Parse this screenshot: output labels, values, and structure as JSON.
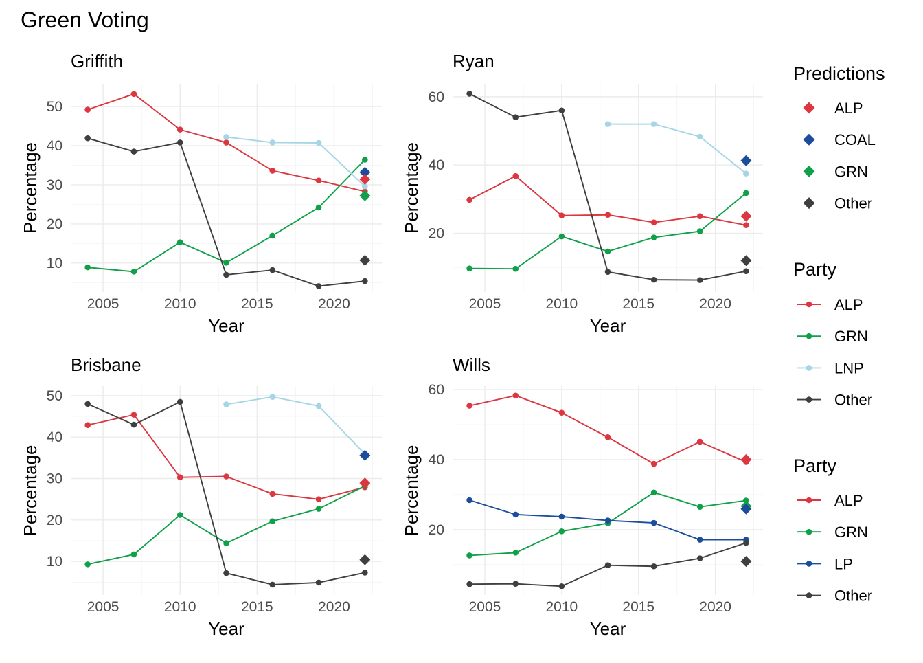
{
  "title": "Green Voting",
  "colors": {
    "ALP": "#dc3641",
    "GRN": "#10a049",
    "LNP": "#a6d5e6",
    "LP": "#1b4d9c",
    "COAL": "#1b4d9c",
    "Other": "#3f3f3f"
  },
  "legends": [
    {
      "title": "Predictions",
      "kind": "diamond",
      "items": [
        "ALP",
        "COAL",
        "GRN",
        "Other"
      ]
    },
    {
      "title": "Party",
      "kind": "line-point",
      "items": [
        "ALP",
        "GRN",
        "LNP",
        "Other"
      ]
    },
    {
      "title": "Party",
      "kind": "line-point",
      "items": [
        "ALP",
        "GRN",
        "LP",
        "Other"
      ]
    }
  ],
  "chart_data": [
    {
      "type": "line",
      "title": "Griffith",
      "xlabel": "Year",
      "ylabel": "Percentage",
      "xlim": [
        2002.9,
        2023.1
      ],
      "ylim": [
        2.6,
        55.8
      ],
      "xticks": [
        2005,
        2010,
        2015,
        2020
      ],
      "yticks": [
        10,
        20,
        30,
        40,
        50
      ],
      "series": [
        {
          "name": "ALP",
          "x": [
            2004,
            2007,
            2010,
            2013,
            2016,
            2019,
            2022
          ],
          "y": [
            49.2,
            53.2,
            44.1,
            40.8,
            33.6,
            31.1,
            28.3
          ]
        },
        {
          "name": "GRN",
          "x": [
            2004,
            2007,
            2010,
            2013,
            2016,
            2019,
            2022
          ],
          "y": [
            8.9,
            7.8,
            15.3,
            10.1,
            17.0,
            24.2,
            36.4
          ]
        },
        {
          "name": "LNP",
          "x": [
            2013,
            2016,
            2019,
            2022
          ],
          "y": [
            42.2,
            40.8,
            40.7,
            29.6
          ]
        },
        {
          "name": "Other",
          "x": [
            2004,
            2007,
            2010,
            2013,
            2016,
            2019,
            2022
          ],
          "y": [
            41.9,
            38.5,
            40.8,
            7.0,
            8.2,
            4.1,
            5.4
          ]
        }
      ],
      "predictions": [
        {
          "party": "COAL",
          "x": 2022,
          "y": 33.2
        },
        {
          "party": "ALP",
          "x": 2022,
          "y": 31.4
        },
        {
          "party": "GRN",
          "x": 2022,
          "y": 27.2
        },
        {
          "party": "Other",
          "x": 2022,
          "y": 10.7
        }
      ]
    },
    {
      "type": "line",
      "title": "Ryan",
      "xlabel": "Year",
      "ylabel": "Percentage",
      "xlim": [
        2002.9,
        2023.1
      ],
      "ylim": [
        2.8,
        63.8
      ],
      "xticks": [
        2005,
        2010,
        2015,
        2020
      ],
      "yticks": [
        20,
        40,
        60
      ],
      "series": [
        {
          "name": "ALP",
          "x": [
            2004,
            2007,
            2010,
            2013,
            2016,
            2019,
            2022
          ],
          "y": [
            29.8,
            36.8,
            25.2,
            25.4,
            23.2,
            25.0,
            22.4
          ]
        },
        {
          "name": "GRN",
          "x": [
            2004,
            2007,
            2010,
            2013,
            2016,
            2019,
            2022
          ],
          "y": [
            9.7,
            9.6,
            19.1,
            14.7,
            18.8,
            20.6,
            31.8
          ]
        },
        {
          "name": "LNP",
          "x": [
            2013,
            2016,
            2019,
            2022
          ],
          "y": [
            52.0,
            52.0,
            48.3,
            37.5
          ]
        },
        {
          "name": "Other",
          "x": [
            2004,
            2007,
            2010,
            2013,
            2016,
            2019,
            2022
          ],
          "y": [
            60.9,
            54.0,
            56.0,
            8.7,
            6.4,
            6.3,
            8.9
          ]
        }
      ],
      "predictions": [
        {
          "party": "COAL",
          "x": 2022,
          "y": 41.3
        },
        {
          "party": "ALP",
          "x": 2022,
          "y": 25.0
        },
        {
          "party": "Other",
          "x": 2022,
          "y": 12.0
        }
      ]
    },
    {
      "type": "line",
      "title": "Brisbane",
      "xlabel": "Year",
      "ylabel": "Percentage",
      "xlim": [
        2002.9,
        2023.1
      ],
      "ylim": [
        1.9,
        52.3
      ],
      "xticks": [
        2005,
        2010,
        2015,
        2020
      ],
      "yticks": [
        10,
        20,
        30,
        40,
        50
      ],
      "series": [
        {
          "name": "ALP",
          "x": [
            2004,
            2007,
            2010,
            2013,
            2016,
            2019,
            2022
          ],
          "y": [
            42.9,
            45.4,
            30.3,
            30.5,
            26.3,
            25.0,
            27.9
          ]
        },
        {
          "name": "GRN",
          "x": [
            2004,
            2007,
            2010,
            2013,
            2016,
            2019,
            2022
          ],
          "y": [
            9.3,
            11.7,
            21.2,
            14.4,
            19.7,
            22.7,
            28.2
          ]
        },
        {
          "name": "LNP",
          "x": [
            2013,
            2016,
            2019,
            2022
          ],
          "y": [
            47.9,
            49.7,
            47.5,
            35.9
          ]
        },
        {
          "name": "Other",
          "x": [
            2004,
            2007,
            2010,
            2013,
            2016,
            2019,
            2022
          ],
          "y": [
            48.0,
            43.0,
            48.5,
            7.2,
            4.4,
            4.9,
            7.3
          ]
        }
      ],
      "predictions": [
        {
          "party": "COAL",
          "x": 2022,
          "y": 35.6
        },
        {
          "party": "ALP",
          "x": 2022,
          "y": 28.9
        },
        {
          "party": "Other",
          "x": 2022,
          "y": 10.4
        }
      ]
    },
    {
      "type": "line",
      "title": "Wills",
      "xlabel": "Year",
      "ylabel": "Percentage",
      "xlim": [
        2002.9,
        2023.1
      ],
      "ylim": [
        1.3,
        61.0
      ],
      "xticks": [
        2005,
        2010,
        2015,
        2020
      ],
      "yticks": [
        20,
        40,
        60
      ],
      "series": [
        {
          "name": "ALP",
          "x": [
            2004,
            2007,
            2010,
            2013,
            2016,
            2019,
            2022
          ],
          "y": [
            55.4,
            58.3,
            53.4,
            46.4,
            38.8,
            45.1,
            39.3
          ]
        },
        {
          "name": "GRN",
          "x": [
            2004,
            2007,
            2010,
            2013,
            2016,
            2019,
            2022
          ],
          "y": [
            12.6,
            13.4,
            19.5,
            21.8,
            30.6,
            26.5,
            28.3
          ]
        },
        {
          "name": "LP",
          "x": [
            2004,
            2007,
            2010,
            2013,
            2016,
            2019,
            2022
          ],
          "y": [
            28.4,
            24.3,
            23.7,
            22.6,
            21.9,
            17.1,
            17.1
          ]
        },
        {
          "name": "Other",
          "x": [
            2004,
            2007,
            2010,
            2013,
            2016,
            2019,
            2022
          ],
          "y": [
            4.4,
            4.5,
            3.8,
            9.8,
            9.5,
            11.8,
            16.2
          ]
        }
      ],
      "predictions": [
        {
          "party": "ALP",
          "x": 2022,
          "y": 40.0
        },
        {
          "party": "GRN",
          "x": 2022,
          "y": 26.7
        },
        {
          "party": "COAL",
          "x": 2022,
          "y": 25.9
        },
        {
          "party": "Other",
          "x": 2022,
          "y": 10.9
        }
      ]
    }
  ]
}
